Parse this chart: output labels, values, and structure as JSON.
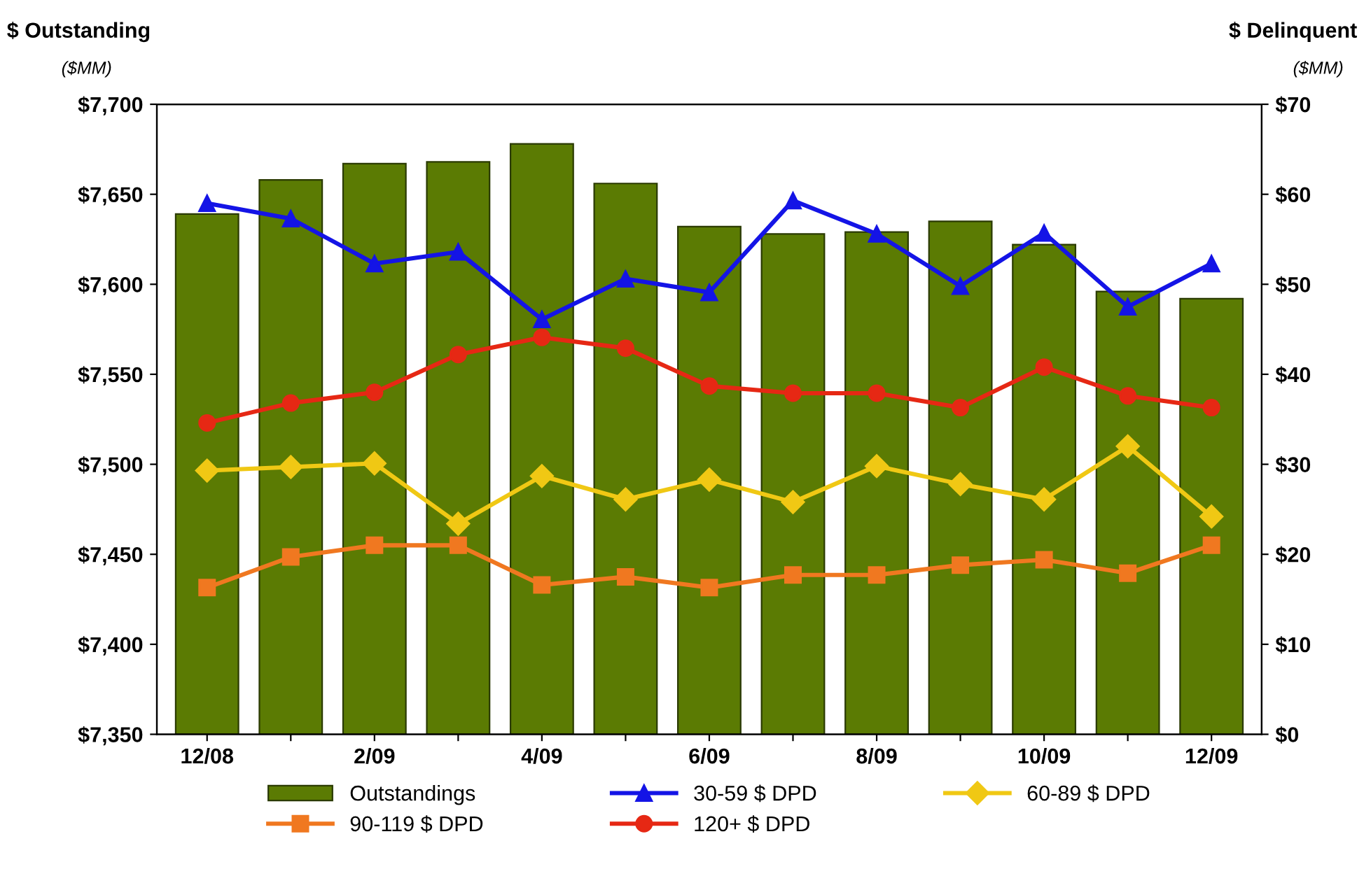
{
  "chart_data": {
    "type": "bar",
    "ylabel": "$ Outstanding",
    "y2label": "$ Delinquent",
    "annotations": [
      "($MM)",
      "($MM)"
    ],
    "categories": [
      "12/08",
      null,
      "2/09",
      null,
      "4/09",
      null,
      "6/09",
      null,
      "8/09",
      null,
      "10/09",
      null,
      "12/09"
    ],
    "series": [
      {
        "name": "Outstandings",
        "color": "#5b7b03",
        "values": [
          7639,
          7658,
          7667,
          7668,
          7678,
          7656,
          7632,
          7628,
          7629,
          7635,
          7622,
          7596,
          7592
        ]
      },
      {
        "name": "30-59 $ DPD",
        "type": "line",
        "axis": "y2",
        "marker": "triangle",
        "color": "#1414e6",
        "values": [
          59.0,
          57.3,
          52.3,
          53.6,
          46.1,
          50.6,
          49.1,
          59.3,
          55.6,
          49.8,
          55.7,
          47.5,
          52.3
        ]
      },
      {
        "name": "60-89 $ DPD",
        "type": "line",
        "axis": "y2",
        "marker": "diamond",
        "color": "#f0c814",
        "values": [
          29.3,
          29.7,
          30.1,
          23.4,
          28.7,
          26.1,
          28.3,
          25.8,
          29.8,
          27.8,
          26.1,
          32.0,
          24.2
        ]
      },
      {
        "name": "90-119 $ DPD",
        "type": "line",
        "axis": "y2",
        "marker": "square",
        "color": "#f07820",
        "values": [
          16.3,
          19.7,
          21.0,
          21.0,
          16.6,
          17.5,
          16.3,
          17.7,
          17.7,
          18.8,
          19.4,
          17.9,
          21.0
        ]
      },
      {
        "name": "120+ $ DPD",
        "type": "line",
        "axis": "y2",
        "marker": "circle",
        "color": "#e62814",
        "values": [
          34.6,
          36.8,
          38.0,
          42.2,
          44.1,
          42.9,
          38.7,
          37.9,
          37.9,
          36.3,
          40.8,
          37.6,
          36.3
        ]
      }
    ],
    "ylim": [
      7350,
      7700
    ],
    "yticks": [
      {
        "value": 7350,
        "label": "$7,350"
      },
      {
        "value": 7400,
        "label": "$7,400"
      },
      {
        "value": 7450,
        "label": "$7,450"
      },
      {
        "value": 7500,
        "label": "$7,500"
      },
      {
        "value": 7550,
        "label": "$7,550"
      },
      {
        "value": 7600,
        "label": "$7,600"
      },
      {
        "value": 7650,
        "label": "$7,650"
      },
      {
        "value": 7700,
        "label": "$7,700"
      }
    ],
    "y2lim": [
      0,
      70
    ],
    "y2ticks": [
      {
        "value": 0,
        "label": "$0"
      },
      {
        "value": 10,
        "label": "$10"
      },
      {
        "value": 20,
        "label": "$20"
      },
      {
        "value": 30,
        "label": "$30"
      },
      {
        "value": 40,
        "label": "$40"
      },
      {
        "value": 50,
        "label": "$50"
      },
      {
        "value": 60,
        "label": "$60"
      },
      {
        "value": 70,
        "label": "$70"
      }
    ],
    "grid": false,
    "legend": "bottom",
    "line_style": "solid"
  }
}
